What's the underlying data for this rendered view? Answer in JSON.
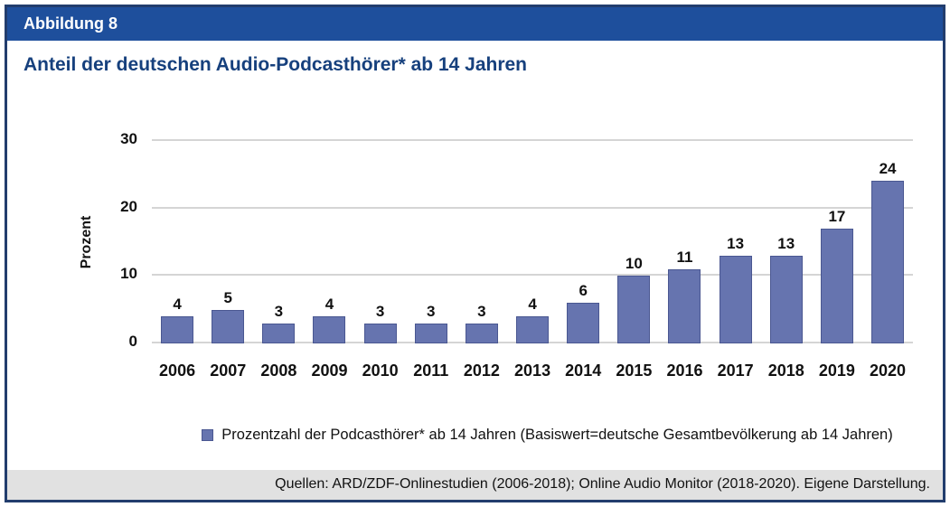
{
  "header": {
    "label": "Abbildung 8"
  },
  "title": {
    "text": "Anteil der deutschen Audio-Podcasthörer* ab 14 Jahren"
  },
  "chart_data": {
    "type": "bar",
    "categories": [
      "2006",
      "2007",
      "2008",
      "2009",
      "2010",
      "2011",
      "2012",
      "2013",
      "2014",
      "2015",
      "2016",
      "2017",
      "2018",
      "2019",
      "2020"
    ],
    "values": [
      4,
      5,
      3,
      4,
      3,
      3,
      3,
      4,
      6,
      10,
      11,
      13,
      13,
      17,
      24
    ],
    "title": "Anteil der deutschen Audio-Podcasthörer* ab 14 Jahren",
    "xlabel": "",
    "ylabel": "Prozent",
    "yticks": [
      0,
      10,
      20,
      30
    ],
    "ylim": [
      0,
      30
    ],
    "grid": true,
    "value_labels": true,
    "legend_position": "bottom",
    "bar_color": "#6674af",
    "bar_border_color": "#4a5791"
  },
  "legend": {
    "label": "Prozentzahl der Podcasthörer* ab 14 Jahren (Basiswert=deutsche Gesamtbevölkerung ab 14 Jahren)"
  },
  "footer": {
    "text": "Quellen: ARD/ZDF-Onlinestudien (2006-2018); Online Audio Monitor (2018-2020). Eigene Darstellung."
  },
  "colors": {
    "frame_border": "#223d6d",
    "header_bg": "#1e4f9c",
    "header_text": "#ffffff",
    "title_text": "#16407d",
    "bar_fill": "#6674af",
    "bar_border": "#4a5791",
    "gridline": "#d5d5d5",
    "footer_bg": "#e1e1e1",
    "text": "#111111"
  }
}
